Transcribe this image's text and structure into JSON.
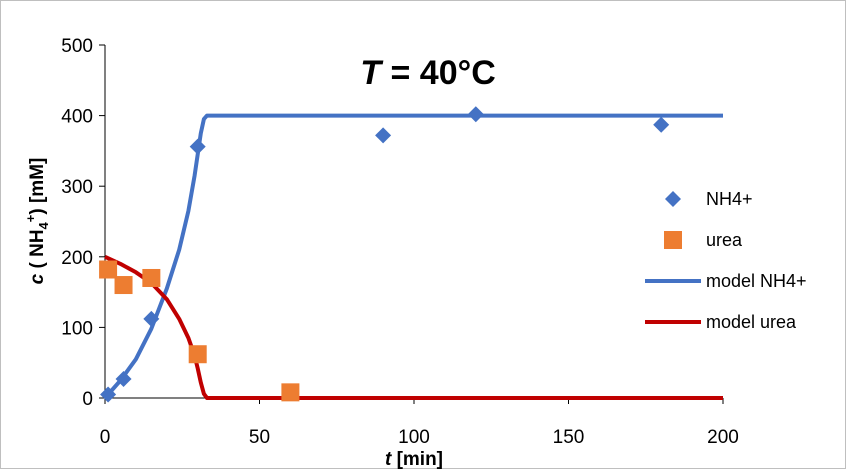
{
  "chart_data": {
    "type": "scatter",
    "title": {
      "var": "T",
      "rest": " = 40°C"
    },
    "xlabel": {
      "var": "t",
      "rest": " [min]"
    },
    "ylabel": {
      "var": "c",
      "pre": " ( NH",
      "sub": "4",
      "sup": "+",
      "post": ") [mM]"
    },
    "xlim": [
      0,
      200
    ],
    "ylim": [
      0,
      500
    ],
    "xticks": [
      0,
      50,
      100,
      150,
      200
    ],
    "yticks": [
      0,
      100,
      200,
      300,
      400,
      500
    ],
    "grid": false,
    "legend_position": "right",
    "series": [
      {
        "name": "NH4+",
        "kind": "points",
        "marker": "diamond",
        "color": "#4472C4",
        "x": [
          1,
          6,
          15,
          30,
          90,
          120,
          180
        ],
        "y": [
          5,
          27,
          112,
          356,
          372,
          402,
          387
        ]
      },
      {
        "name": "urea",
        "kind": "points",
        "marker": "square",
        "color": "#ED7D31",
        "x": [
          1,
          6,
          15,
          30,
          60
        ],
        "y": [
          182,
          160,
          170,
          62,
          8
        ]
      },
      {
        "name": "model NH4+",
        "kind": "line",
        "color": "#4472C4",
        "x": [
          0,
          5,
          10,
          15,
          20,
          24,
          27,
          29,
          30,
          31,
          32,
          33,
          35,
          50,
          100,
          150,
          200
        ],
        "y": [
          0,
          25,
          55,
          98,
          155,
          210,
          265,
          315,
          345,
          375,
          395,
          400,
          400,
          400,
          400,
          400,
          400
        ]
      },
      {
        "name": "model urea",
        "kind": "line",
        "color": "#C00000",
        "x": [
          0,
          5,
          10,
          15,
          20,
          24,
          27,
          29,
          30,
          31,
          32,
          33,
          35,
          50,
          100,
          150,
          200
        ],
        "y": [
          200,
          190,
          178,
          163,
          140,
          112,
          85,
          60,
          42,
          22,
          6,
          0,
          0,
          0,
          0,
          0,
          0
        ]
      }
    ]
  }
}
